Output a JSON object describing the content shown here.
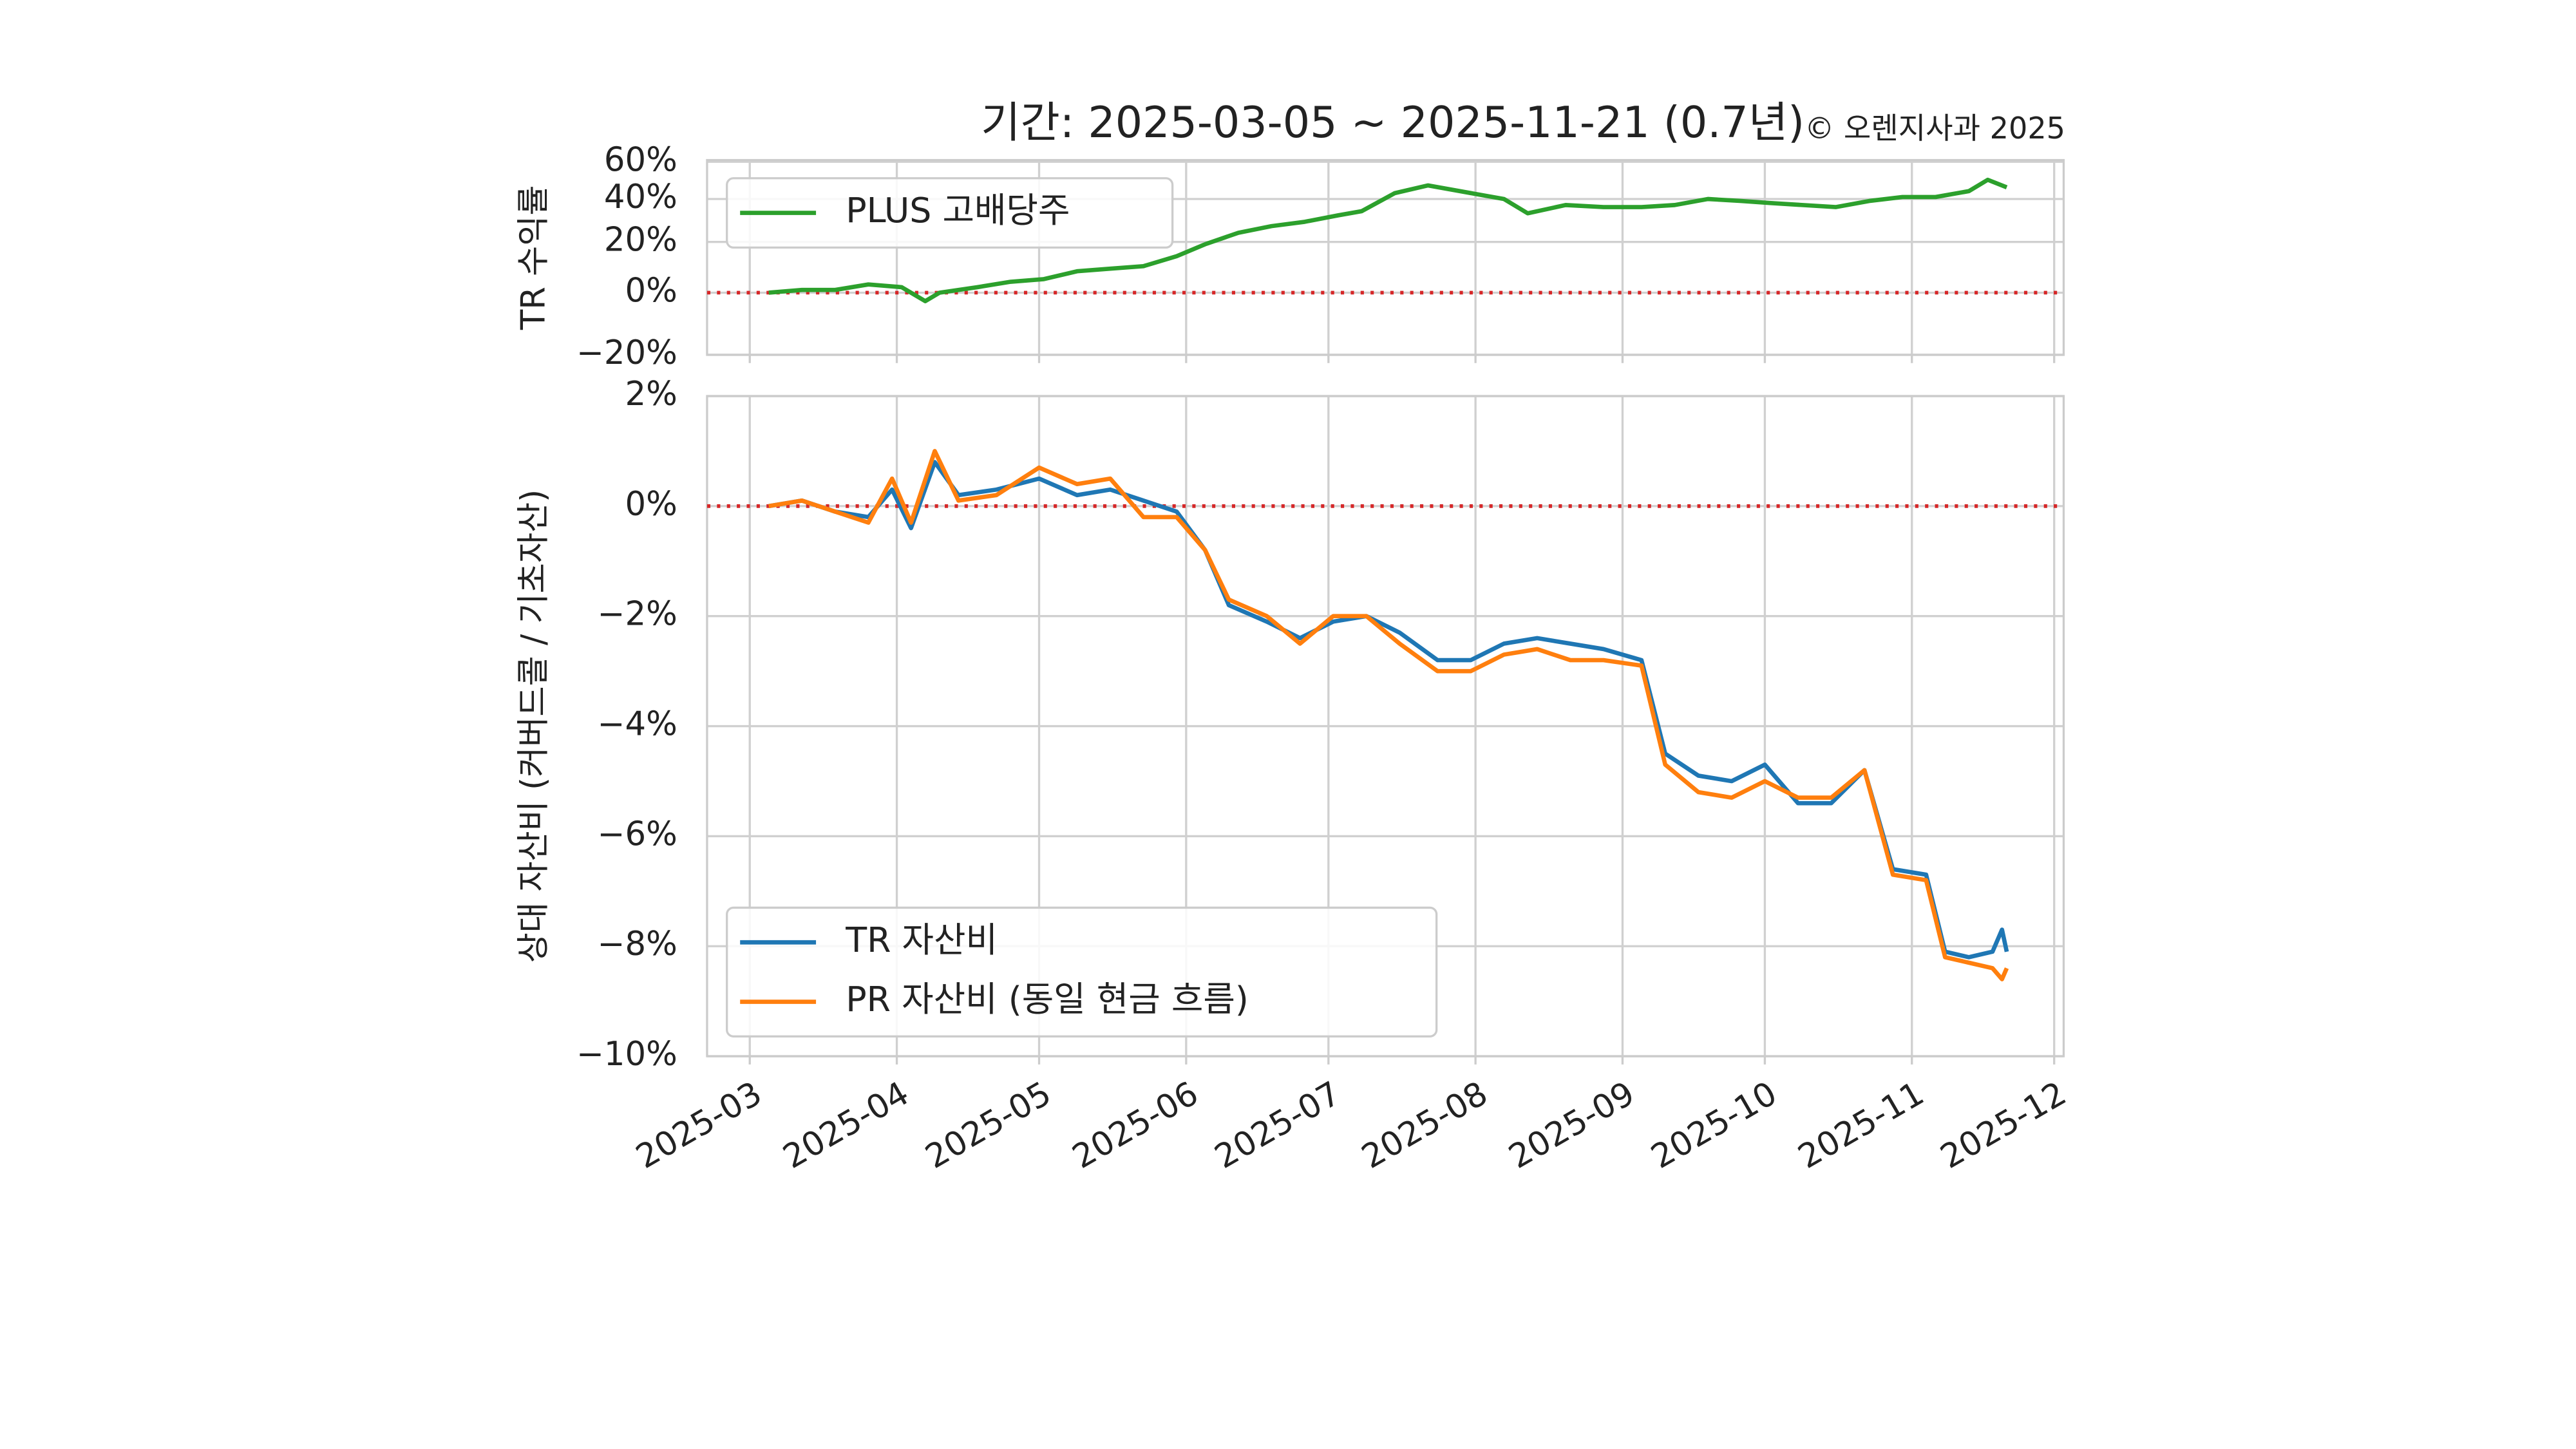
{
  "title": "기간: 2025-03-05 ~ 2025-11-21 (0.7년)",
  "annotation": "© 오렌지사과 2025",
  "chart_data": [
    {
      "type": "line",
      "ylabel": "TR 수익률",
      "log": true,
      "grid": true,
      "legend": "upper left",
      "hline": 0,
      "hline_color": "#d62728",
      "xlim": [
        "2025-02-20",
        "2025-12-03"
      ],
      "x": [
        "2025-03-05",
        "2025-03-12",
        "2025-03-19",
        "2025-03-26",
        "2025-04-02",
        "2025-04-07",
        "2025-04-10",
        "2025-04-18",
        "2025-04-25",
        "2025-05-02",
        "2025-05-09",
        "2025-05-16",
        "2025-05-23",
        "2025-05-30",
        "2025-06-05",
        "2025-06-12",
        "2025-06-19",
        "2025-06-26",
        "2025-07-03",
        "2025-07-08",
        "2025-07-15",
        "2025-07-22",
        "2025-07-31",
        "2025-08-07",
        "2025-08-12",
        "2025-08-20",
        "2025-08-28",
        "2025-09-05",
        "2025-09-12",
        "2025-09-19",
        "2025-09-26",
        "2025-10-02",
        "2025-10-16",
        "2025-10-23",
        "2025-10-30",
        "2025-11-06",
        "2025-11-13",
        "2025-11-17",
        "2025-11-21"
      ],
      "series": [
        {
          "name": "PLUS 고배당주",
          "color": "#2ca02c",
          "values": [
            0,
            1,
            1,
            3,
            2,
            -3,
            0,
            2,
            4,
            5,
            8,
            9,
            10,
            14,
            19,
            24,
            27,
            29,
            32,
            34,
            43,
            47,
            43,
            40,
            33,
            37,
            36,
            36,
            37,
            40,
            39,
            38,
            36,
            39,
            41,
            41,
            44,
            50,
            46
          ]
        }
      ],
      "ylim": [
        -20,
        61
      ],
      "yticks": [
        {
          "value": -20,
          "label": "−20%"
        },
        {
          "value": 0,
          "label": "0%"
        },
        {
          "value": 20,
          "label": "20%"
        },
        {
          "value": 40,
          "label": "40%"
        },
        {
          "value": 60,
          "label": "60%"
        }
      ]
    },
    {
      "type": "line",
      "ylabel": "상대 자산비 (커버드콜 / 기초자산)",
      "grid": true,
      "legend": "lower left",
      "hline": 0,
      "hline_color": "#d62728",
      "xlim": [
        "2025-02-20",
        "2025-12-03"
      ],
      "x": [
        "2025-03-05",
        "2025-03-12",
        "2025-03-19",
        "2025-03-26",
        "2025-03-31",
        "2025-04-04",
        "2025-04-09",
        "2025-04-14",
        "2025-04-22",
        "2025-05-01",
        "2025-05-09",
        "2025-05-16",
        "2025-05-23",
        "2025-05-30",
        "2025-06-05",
        "2025-06-10",
        "2025-06-18",
        "2025-06-25",
        "2025-07-02",
        "2025-07-09",
        "2025-07-16",
        "2025-07-24",
        "2025-07-31",
        "2025-08-07",
        "2025-08-14",
        "2025-08-21",
        "2025-08-28",
        "2025-09-05",
        "2025-09-10",
        "2025-09-17",
        "2025-09-24",
        "2025-10-01",
        "2025-10-08",
        "2025-10-15",
        "2025-10-22",
        "2025-10-28",
        "2025-11-04",
        "2025-11-08",
        "2025-11-13",
        "2025-11-18",
        "2025-11-20",
        "2025-11-21"
      ],
      "series": [
        {
          "name": "TR 자산비",
          "color": "#1f77b4",
          "values": [
            0,
            0.1,
            -0.1,
            -0.2,
            0.3,
            -0.4,
            0.8,
            0.2,
            0.3,
            0.5,
            0.2,
            0.3,
            0.1,
            -0.1,
            -0.8,
            -1.8,
            -2.1,
            -2.4,
            -2.1,
            -2.0,
            -2.3,
            -2.8,
            -2.8,
            -2.5,
            -2.4,
            -2.5,
            -2.6,
            -2.8,
            -4.5,
            -4.9,
            -5.0,
            -4.7,
            -5.4,
            -5.4,
            -4.8,
            -6.6,
            -6.7,
            -8.1,
            -8.2,
            -8.1,
            -7.7,
            -8.1
          ]
        },
        {
          "name": "PR 자산비 (동일 현금 흐름)",
          "color": "#ff7f0e",
          "values": [
            0,
            0.1,
            -0.1,
            -0.3,
            0.5,
            -0.3,
            1.0,
            0.1,
            0.2,
            0.7,
            0.4,
            0.5,
            -0.2,
            -0.2,
            -0.8,
            -1.7,
            -2.0,
            -2.5,
            -2.0,
            -2.0,
            -2.5,
            -3.0,
            -3.0,
            -2.7,
            -2.6,
            -2.8,
            -2.8,
            -2.9,
            -4.7,
            -5.2,
            -5.3,
            -5.0,
            -5.3,
            -5.3,
            -4.8,
            -6.7,
            -6.8,
            -8.2,
            -8.3,
            -8.4,
            -8.6,
            -8.4
          ]
        }
      ],
      "ylim": [
        -10,
        2
      ],
      "yticks": [
        {
          "value": -10,
          "label": "−10%"
        },
        {
          "value": -8,
          "label": "−8%"
        },
        {
          "value": -6,
          "label": "−6%"
        },
        {
          "value": -4,
          "label": "−4%"
        },
        {
          "value": -2,
          "label": "−2%"
        },
        {
          "value": 0,
          "label": "0%"
        },
        {
          "value": 2,
          "label": "2%"
        }
      ],
      "xticks": [
        {
          "value": "2025-03-01",
          "label": "2025-03"
        },
        {
          "value": "2025-04-01",
          "label": "2025-04"
        },
        {
          "value": "2025-05-01",
          "label": "2025-05"
        },
        {
          "value": "2025-06-01",
          "label": "2025-06"
        },
        {
          "value": "2025-07-01",
          "label": "2025-07"
        },
        {
          "value": "2025-08-01",
          "label": "2025-08"
        },
        {
          "value": "2025-09-01",
          "label": "2025-09"
        },
        {
          "value": "2025-10-01",
          "label": "2025-10"
        },
        {
          "value": "2025-11-01",
          "label": "2025-11"
        },
        {
          "value": "2025-12-01",
          "label": "2025-12"
        }
      ]
    }
  ]
}
